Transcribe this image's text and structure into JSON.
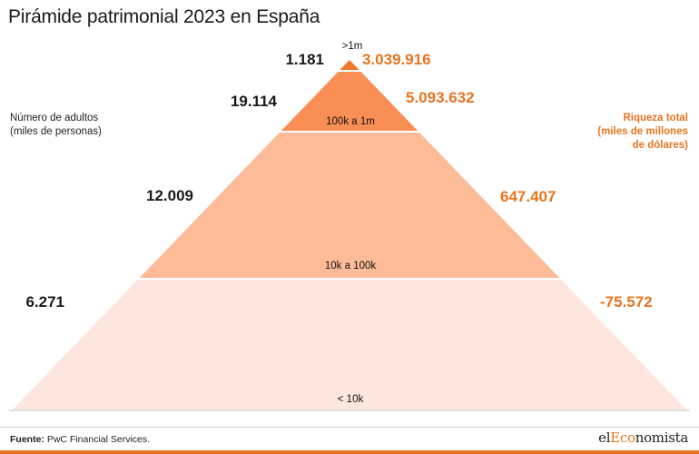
{
  "title": "Pirámide patrimonial 2023 en España",
  "left_axis_label": [
    "Número de adultos",
    "(miles de personas)"
  ],
  "right_axis_label": [
    "Riqueza total",
    "(miles de millones",
    "de dólares)"
  ],
  "footer": {
    "source_label": "Fuente:",
    "source_text": "PwC Financial Services."
  },
  "logo": {
    "prefix": "el",
    "accent": "Eco",
    "suffix": "nomista"
  },
  "colors": {
    "accent": "#e8741e",
    "tier_top": "#f0772a",
    "tier_2": "#f98f55",
    "tier_3": "#fdbb97",
    "tier_4": "#fde6dd"
  },
  "chart_data": {
    "type": "pyramid",
    "title": "Pirámide patrimonial 2023 en España",
    "tiers": [
      {
        "band": ">1m",
        "adults": "1.181",
        "wealth": "3.039.916"
      },
      {
        "band": "100k a 1m",
        "adults": "19.114",
        "wealth": "5.093.632"
      },
      {
        "band": "10k a 100k",
        "adults": "12.009",
        "wealth": "647.407"
      },
      {
        "band": "< 10k",
        "adults": "6.271",
        "wealth": "-75.572"
      }
    ]
  }
}
